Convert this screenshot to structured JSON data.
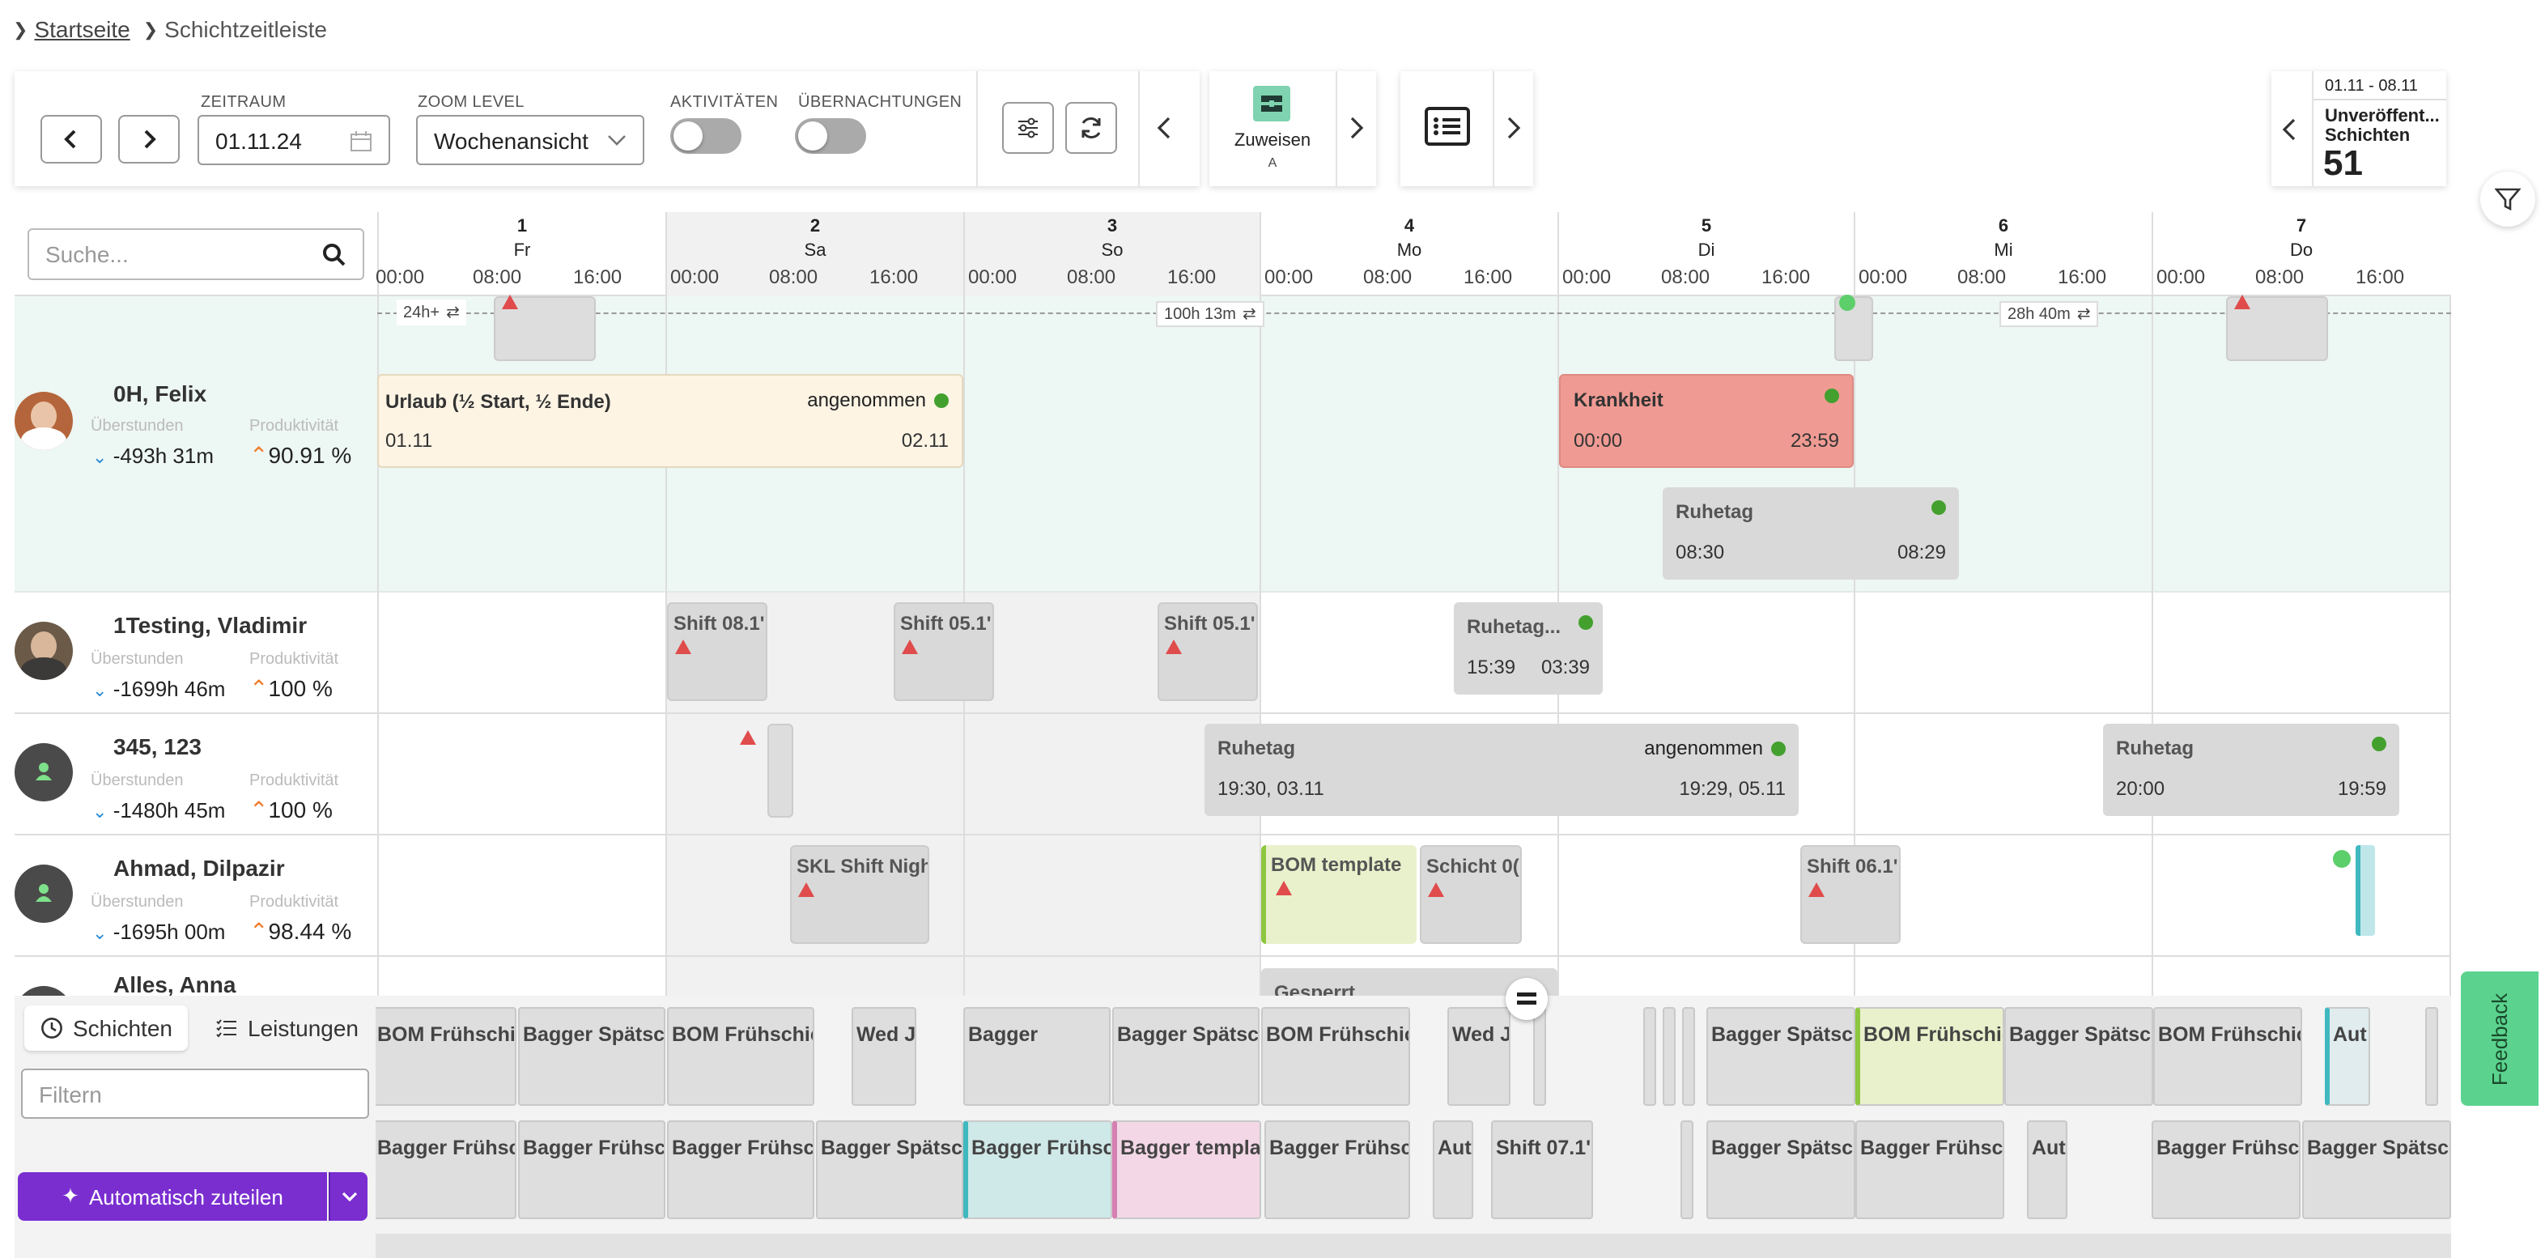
{
  "breadcrumb": {
    "home": "Startseite",
    "current": "Schichtzeitleiste"
  },
  "toolbar": {
    "zeitraum_label": "ZEITRAUM",
    "date_value": "01.11.24",
    "zoom_label": "ZOOM LEVEL",
    "zoom_value": "Wochenansicht",
    "aktivitaeten_label": "AKTIVITÄTEN",
    "uebernachtungen_label": "ÜBERNACHTUNGEN",
    "assign_label": "Zuweisen",
    "assign_sub": "A"
  },
  "summary": {
    "range": "01.11 - 08.11",
    "label1": "Unveröffent...",
    "label2": "Schichten",
    "count": "51"
  },
  "search": {
    "placeholder": "Suche..."
  },
  "days": [
    {
      "num": "1",
      "name": "Fr"
    },
    {
      "num": "2",
      "name": "Sa"
    },
    {
      "num": "3",
      "name": "So"
    },
    {
      "num": "4",
      "name": "Mo"
    },
    {
      "num": "5",
      "name": "Di"
    },
    {
      "num": "6",
      "name": "Mi"
    },
    {
      "num": "7",
      "name": "Do"
    }
  ],
  "hours": [
    "00:00",
    "08:00",
    "16:00"
  ],
  "timeline_labels": {
    "first": "24h+",
    "mid": "100h 13m",
    "right": "28h 40m"
  },
  "stat_labels": {
    "overtime": "Überstunden",
    "productivity": "Produktivität"
  },
  "employees": [
    {
      "name": "0H, Felix",
      "overtime": "-493h 31m",
      "productivity": "90.91 %"
    },
    {
      "name": "1Testing, Vladimir",
      "overtime": "-1699h 46m",
      "productivity": "100 %"
    },
    {
      "name": "345, 123",
      "overtime": "-1480h 45m",
      "productivity": "100 %"
    },
    {
      "name": "Ahmad, Dilpazir",
      "overtime": "-1695h 00m",
      "productivity": "98.44 %"
    },
    {
      "name": "Alles, Anna"
    }
  ],
  "blocks": {
    "urlaub": {
      "title": "Urlaub (½ Start, ½ Ende)",
      "status": "angenommen",
      "start": "01.11",
      "end": "02.11"
    },
    "krankheit": {
      "title": "Krankheit",
      "start": "00:00",
      "end": "23:59"
    },
    "ruhetag1": {
      "title": "Ruhetag",
      "start": "08:30",
      "end": "08:29"
    },
    "shift_a": {
      "title": "Shift 08.1'"
    },
    "shift_b": {
      "title": "Shift 05.1'"
    },
    "shift_c": {
      "title": "Shift 05.1'"
    },
    "ruhetag2": {
      "title": "Ruhetag...",
      "start": "15:39",
      "end": "03:39"
    },
    "ruhetag3": {
      "title": "Ruhetag",
      "status": "angenommen",
      "start": "19:30, 03.11",
      "end": "19:29, 05.11"
    },
    "ruhetag4": {
      "title": "Ruhetag",
      "start": "20:00",
      "end": "19:59"
    },
    "skl": {
      "title": "SKL Shift Nigh"
    },
    "bom": {
      "title": "BOM template"
    },
    "schicht": {
      "title": "Schicht 0("
    },
    "shift_d": {
      "title": "Shift 06.1'"
    },
    "gesperrt": {
      "title": "Gesperrt"
    }
  },
  "sidebar": {
    "tab_shifts": "Schichten",
    "tab_services": "Leistungen",
    "filter_placeholder": "Filtern",
    "auto_assign": "Automatisch zuteilen"
  },
  "open_row1": [
    "BOM Frühschic",
    "Bagger Spätsch",
    "BOM Frühschic",
    "Wed J",
    "Bagger",
    "Bagger Spätsch",
    "BOM Frühschic",
    "Wed J",
    "Bagger Spätsch",
    "BOM Frühschic",
    "Bagger Spätsch",
    "BOM Frühschic",
    "Aut"
  ],
  "open_row2": [
    "Bagger Frühsch",
    "Bagger Frühsch",
    "Bagger Frühsch",
    "Bagger Spätsch",
    "Bagger Frühsch",
    "Bagger templat",
    "Bagger Frühsch",
    "Aut",
    "Shift 07.1'",
    "Bagger Spätsch",
    "Bagger Frühsch",
    "Aut",
    "Bagger Frühsch",
    "Bagger Spätsch"
  ],
  "feedback": "Feedback"
}
